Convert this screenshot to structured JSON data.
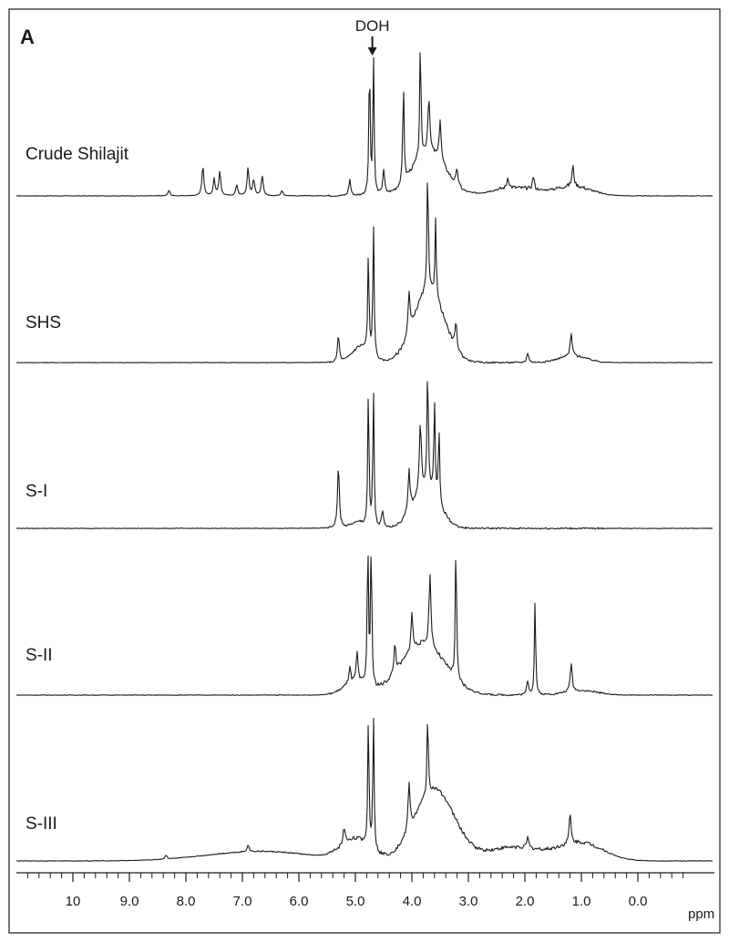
{
  "chart_data": {
    "type": "line",
    "panel_label": "A",
    "xlabel": "ppm",
    "xlim": [
      10.8,
      -0.8
    ],
    "x_axis_reversed": true,
    "x_tick_labels": [
      "10",
      "9.0",
      "8.0",
      "7.0",
      "6.0",
      "5.0",
      "4.0",
      "3.0",
      "2.0",
      "1.0",
      "0.0"
    ],
    "annotation": {
      "text": "DOH",
      "x": 4.7
    },
    "series": [
      {
        "name": "Crude Shilajit",
        "peaks": [
          {
            "x": 8.3,
            "h": 0.04
          },
          {
            "x": 7.7,
            "h": 0.22
          },
          {
            "x": 7.5,
            "h": 0.12
          },
          {
            "x": 7.4,
            "h": 0.18
          },
          {
            "x": 7.1,
            "h": 0.08
          },
          {
            "x": 6.9,
            "h": 0.2
          },
          {
            "x": 6.8,
            "h": 0.12
          },
          {
            "x": 6.65,
            "h": 0.15
          },
          {
            "x": 6.3,
            "h": 0.04
          },
          {
            "x": 5.1,
            "h": 0.12
          },
          {
            "x": 4.75,
            "h": 1.0
          },
          {
            "x": 4.68,
            "h": 1.0
          },
          {
            "x": 4.5,
            "h": 0.18
          },
          {
            "x": 4.15,
            "h": 0.75
          },
          {
            "x": 3.85,
            "h": 0.85
          },
          {
            "x": 3.7,
            "h": 0.4
          },
          {
            "x": 3.5,
            "h": 0.3
          },
          {
            "x": 3.2,
            "h": 0.12
          },
          {
            "x": 2.3,
            "h": 0.08
          },
          {
            "x": 1.85,
            "h": 0.1
          },
          {
            "x": 1.15,
            "h": 0.15
          }
        ]
      },
      {
        "name": "SHS",
        "peaks": [
          {
            "x": 5.3,
            "h": 0.2
          },
          {
            "x": 4.77,
            "h": 0.75
          },
          {
            "x": 4.68,
            "h": 1.0
          },
          {
            "x": 4.05,
            "h": 0.3
          },
          {
            "x": 3.72,
            "h": 0.95
          },
          {
            "x": 3.58,
            "h": 0.6
          },
          {
            "x": 3.22,
            "h": 0.2
          },
          {
            "x": 1.95,
            "h": 0.08
          },
          {
            "x": 1.18,
            "h": 0.17
          }
        ]
      },
      {
        "name": "S-I",
        "peaks": [
          {
            "x": 5.3,
            "h": 0.45
          },
          {
            "x": 4.77,
            "h": 1.0
          },
          {
            "x": 4.68,
            "h": 1.0
          },
          {
            "x": 4.52,
            "h": 0.12
          },
          {
            "x": 4.05,
            "h": 0.3
          },
          {
            "x": 3.85,
            "h": 0.5
          },
          {
            "x": 3.72,
            "h": 0.9
          },
          {
            "x": 3.6,
            "h": 0.7
          },
          {
            "x": 3.52,
            "h": 0.55
          }
        ]
      },
      {
        "name": "S-II",
        "peaks": [
          {
            "x": 5.1,
            "h": 0.12
          },
          {
            "x": 4.97,
            "h": 0.2
          },
          {
            "x": 4.78,
            "h": 1.0
          },
          {
            "x": 4.72,
            "h": 1.0
          },
          {
            "x": 4.3,
            "h": 0.2
          },
          {
            "x": 4.0,
            "h": 0.25
          },
          {
            "x": 3.68,
            "h": 0.5
          },
          {
            "x": 3.22,
            "h": 0.95
          },
          {
            "x": 1.95,
            "h": 0.1
          },
          {
            "x": 1.82,
            "h": 0.65
          },
          {
            "x": 1.18,
            "h": 0.2
          }
        ]
      },
      {
        "name": "S-III",
        "peaks": [
          {
            "x": 8.35,
            "h": 0.03
          },
          {
            "x": 6.9,
            "h": 0.05
          },
          {
            "x": 5.2,
            "h": 0.12
          },
          {
            "x": 4.77,
            "h": 0.95
          },
          {
            "x": 4.68,
            "h": 1.0
          },
          {
            "x": 4.05,
            "h": 0.35
          },
          {
            "x": 3.72,
            "h": 0.6
          },
          {
            "x": 1.95,
            "h": 0.08
          },
          {
            "x": 1.2,
            "h": 0.22
          }
        ]
      }
    ]
  }
}
